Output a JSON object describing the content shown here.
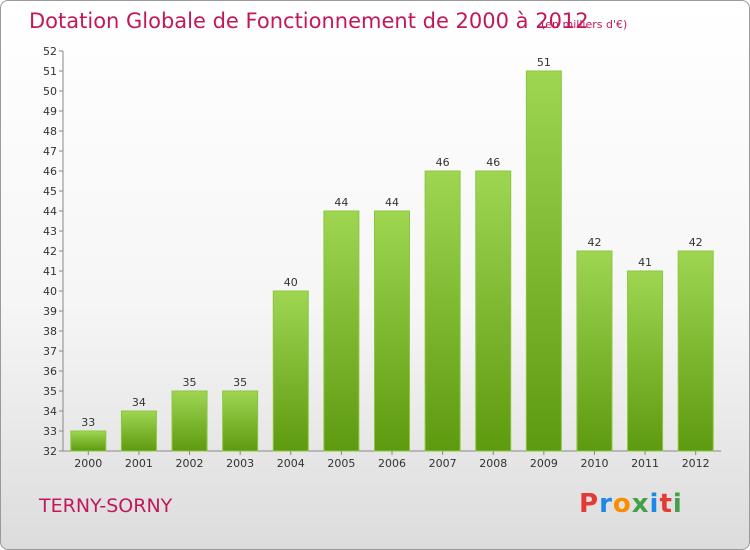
{
  "header": {
    "title": "Dotation Globale de Fonctionnement de 2000 à 2012",
    "subtitle": "(en milliers d'€)"
  },
  "footer": {
    "commune": "TERNY-SORNY",
    "logo": {
      "letters": [
        "P",
        "r",
        "o",
        "x",
        "i",
        "t",
        "i"
      ],
      "colors": [
        "#e53935",
        "#1e88e5",
        "#fb8c00",
        "#43a047",
        "#1e88e5",
        "#e53935",
        "#43a047"
      ]
    }
  },
  "colors": {
    "title": "#c2185b",
    "bar_top": "#9ed652",
    "bar_bottom": "#5e9a0f"
  },
  "chart_data": {
    "type": "bar",
    "categories": [
      "2000",
      "2001",
      "2002",
      "2003",
      "2004",
      "2005",
      "2006",
      "2007",
      "2008",
      "2009",
      "2010",
      "2011",
      "2012"
    ],
    "values": [
      33,
      34,
      35,
      35,
      40,
      44,
      44,
      46,
      46,
      51,
      42,
      41,
      42
    ],
    "title": "Dotation Globale de Fonctionnement de 2000 à 2012",
    "subtitle": "(en milliers d'€)",
    "xlabel": "",
    "ylabel": "",
    "ylim": [
      32,
      52
    ],
    "yticks": [
      32,
      33,
      34,
      35,
      36,
      37,
      38,
      39,
      40,
      41,
      42,
      43,
      44,
      45,
      46,
      47,
      48,
      49,
      50,
      51,
      52
    ],
    "grid": false,
    "legend": "none"
  }
}
